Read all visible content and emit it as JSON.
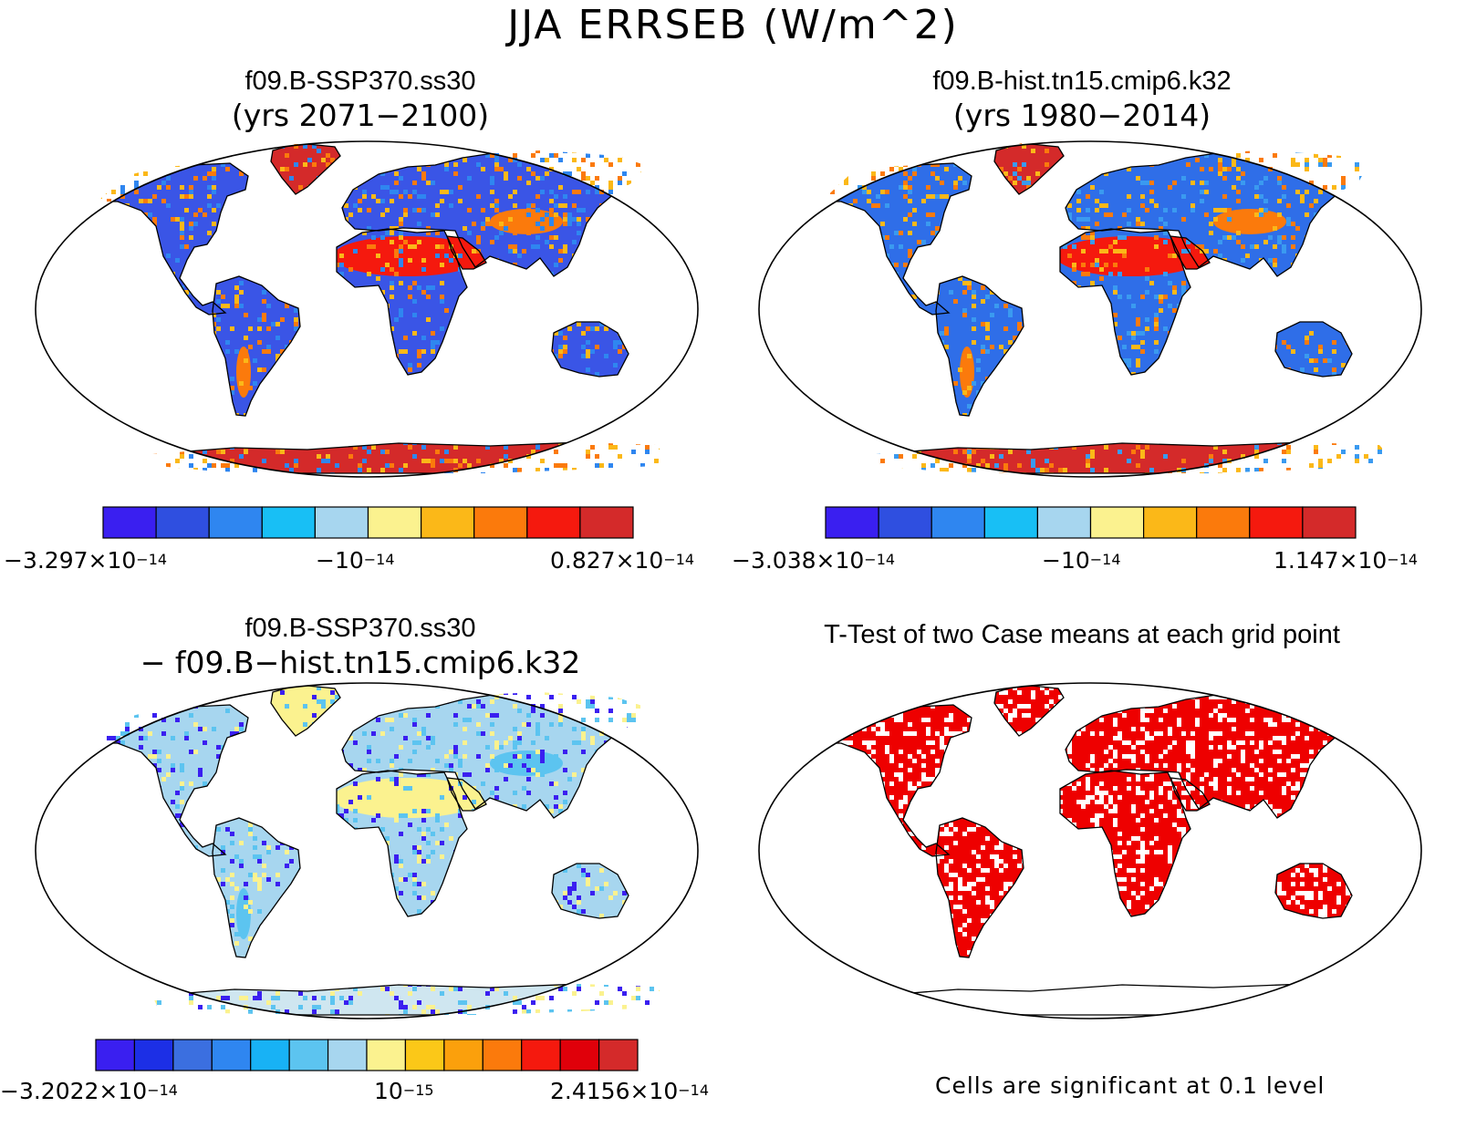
{
  "title": "JJA ERRSEB (W/m^2)",
  "panels": [
    {
      "id": "ssp370",
      "title": "f09.B-SSP370.ss30",
      "subtitle": "(yrs 2071−2100)",
      "colorbar": {
        "colors": [
          "#3a1ff0",
          "#2f4fe0",
          "#2f86f0",
          "#18bff5",
          "#a7d6ef",
          "#fbf28f",
          "#fbb818",
          "#fb7a0c",
          "#f5190e",
          "#d42a2a"
        ],
        "labels": [
          {
            "base": "−3.297×10",
            "exp": "−14"
          },
          {
            "base": "−10",
            "exp": "−14"
          },
          {
            "base": "0.827×10",
            "exp": "−14"
          }
        ]
      }
    },
    {
      "id": "hist",
      "title": "f09.B-hist.tn15.cmip6.k32",
      "subtitle": "(yrs 1980−2014)",
      "colorbar": {
        "colors": [
          "#3a1ff0",
          "#2f4fe0",
          "#2f86f0",
          "#18bff5",
          "#a7d6ef",
          "#fbf28f",
          "#fbb818",
          "#fb7a0c",
          "#f5190e",
          "#d42a2a"
        ],
        "labels": [
          {
            "base": "−3.038×10",
            "exp": "−14"
          },
          {
            "base": "−10",
            "exp": "−14"
          },
          {
            "base": "1.147×10",
            "exp": "−14"
          }
        ]
      }
    },
    {
      "id": "diff",
      "title": "f09.B-SSP370.ss30",
      "subtitle": "− f09.B−hist.tn15.cmip6.k32",
      "colorbar": {
        "colors": [
          "#3a1ff0",
          "#1c2fe6",
          "#3b6fe0",
          "#2f86f0",
          "#18b2f5",
          "#5cc4f0",
          "#a7d6ef",
          "#fbf28f",
          "#fbc818",
          "#fba00c",
          "#fb7a0c",
          "#f5190e",
          "#e0000a",
          "#d42a2a"
        ],
        "labels": [
          {
            "base": "−3.2022×10",
            "exp": "−14"
          },
          {
            "base": "10",
            "exp": "−15"
          },
          {
            "base": "2.4156×10",
            "exp": "−14"
          }
        ]
      }
    },
    {
      "id": "ttest",
      "title": "T-Test of two Case means at each grid point",
      "note": "Cells are significant at 0.1 level"
    }
  ],
  "map_colors": {
    "ssp370_land": "#3a55e6",
    "ssp370_desert": "#f5190e",
    "ssp370_hot": "#fb7a0c",
    "ssp370_warm": "#fbb818",
    "ssp370_cool": "#2f86f0",
    "hist_land": "#2f6ee8",
    "hist_desert": "#f5190e",
    "hist_hot": "#fb7a0c",
    "hist_cool": "#3a9af0",
    "diff_land": "#a7d6ef",
    "diff_cold": "#3a1ff0",
    "diff_pale": "#fbf28f",
    "diff_mid": "#5cc4f0",
    "ttest_land": "#ee0000",
    "ttest_gap": "#ffffff",
    "ice_red": "#d42a2a",
    "ice_diff": "#cfe6f0"
  }
}
